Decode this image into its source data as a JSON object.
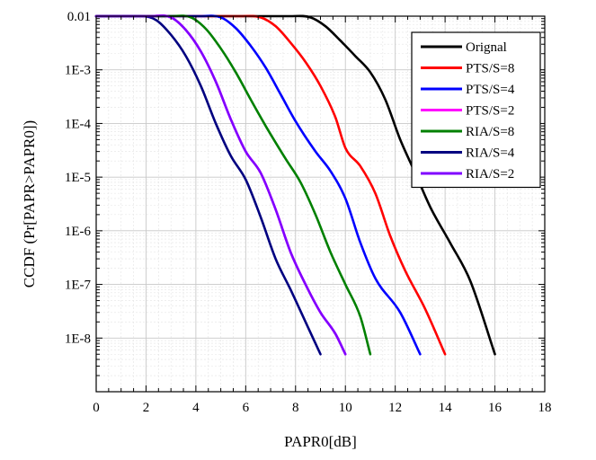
{
  "chart_data": {
    "type": "line",
    "xlabel": "PAPR0[dB]",
    "ylabel": "CCDF  (Pr[PAPR>PAPR0])",
    "xlim": [
      0,
      18
    ],
    "ylim_log10": [
      -9,
      -2
    ],
    "y_scale": "log",
    "grid": true,
    "legend_position": "top-right",
    "x_ticks": [
      "0",
      "2",
      "4",
      "6",
      "8",
      "10",
      "12",
      "14",
      "16",
      "18"
    ],
    "y_ticks": [
      "0.01",
      "1E-3",
      "1E-4",
      "1E-5",
      "1E-6",
      "1E-7",
      "1E-8"
    ],
    "series": [
      {
        "name": "Orignal",
        "color": "#000000",
        "x": [
          0,
          7.8,
          8.6,
          9.2,
          9.8,
          10.4,
          11.0,
          11.6,
          12.2,
          12.8,
          13.4,
          14.2,
          15.0,
          16.0
        ],
        "y": [
          0.01,
          0.01,
          0.0095,
          0.0065,
          0.0035,
          0.0018,
          0.0009,
          0.00028,
          5e-05,
          1.2e-05,
          2.8e-06,
          6e-07,
          1.2e-07,
          5e-09
        ]
      },
      {
        "name": "PTS/S=8",
        "color": "#ff0000",
        "x": [
          0,
          5.8,
          6.6,
          7.2,
          7.8,
          8.4,
          9.0,
          9.6,
          10.0,
          10.6,
          11.2,
          11.8,
          12.4,
          13.2,
          14.0
        ],
        "y": [
          0.01,
          0.01,
          0.0095,
          0.0065,
          0.0032,
          0.0014,
          0.0005,
          0.00013,
          3.5e-05,
          1.6e-05,
          5e-06,
          8e-07,
          1.8e-07,
          3.5e-08,
          5e-09
        ]
      },
      {
        "name": "PTS/S=4",
        "color": "#0000ff",
        "x": [
          0,
          4.2,
          5.0,
          5.6,
          6.2,
          6.8,
          7.4,
          8.0,
          8.8,
          9.4,
          10.0,
          10.6,
          11.2,
          12.2,
          13.0
        ],
        "y": [
          0.01,
          0.01,
          0.0095,
          0.006,
          0.0028,
          0.0011,
          0.00035,
          0.00011,
          3e-05,
          1.3e-05,
          4e-06,
          6e-07,
          1.3e-07,
          3e-08,
          5e-09
        ]
      },
      {
        "name": "PTS/S=2",
        "color": "#ff00ff",
        "x": [
          0,
          2.2,
          3.0,
          3.6,
          4.2,
          4.8,
          5.4,
          6.0,
          6.6,
          7.2,
          7.8,
          8.4,
          9.0,
          9.6,
          10.0
        ],
        "y": [
          0.01,
          0.01,
          0.0095,
          0.0055,
          0.0022,
          0.0006,
          0.00012,
          3e-05,
          1.2e-05,
          2.5e-06,
          4e-07,
          1e-07,
          3e-08,
          1.2e-08,
          5e-09
        ]
      },
      {
        "name": "RIA/S=8",
        "color": "#008000",
        "x": [
          0,
          3.0,
          3.8,
          4.4,
          5.0,
          5.6,
          6.2,
          6.8,
          7.6,
          8.2,
          8.8,
          9.4,
          10.0,
          10.6,
          11.0
        ],
        "y": [
          0.01,
          0.01,
          0.0095,
          0.0058,
          0.0025,
          0.0009,
          0.00028,
          9e-05,
          2.2e-05,
          8e-06,
          2e-06,
          4e-07,
          1e-07,
          2.5e-08,
          5e-09
        ]
      },
      {
        "name": "RIA/S=4",
        "color": "#000080",
        "x": [
          0,
          1.8,
          2.4,
          3.0,
          3.6,
          4.2,
          4.8,
          5.4,
          6.0,
          6.6,
          7.2,
          7.8,
          8.4,
          9.0
        ],
        "y": [
          0.01,
          0.01,
          0.0085,
          0.0045,
          0.0018,
          0.0005,
          0.0001,
          2.5e-05,
          9e-06,
          1.8e-06,
          3e-07,
          8e-08,
          2e-08,
          5e-09
        ]
      },
      {
        "name": "RIA/S=2",
        "color": "#8000ff",
        "x": [
          0,
          2.2,
          3.0,
          3.6,
          4.2,
          4.8,
          5.4,
          6.0,
          6.6,
          7.2,
          7.8,
          8.4,
          9.0,
          9.6,
          10.0
        ],
        "y": [
          0.01,
          0.01,
          0.0095,
          0.0055,
          0.0022,
          0.0006,
          0.00012,
          3e-05,
          1.2e-05,
          2.5e-06,
          4e-07,
          1e-07,
          3e-08,
          1.2e-08,
          5e-09
        ]
      }
    ]
  }
}
